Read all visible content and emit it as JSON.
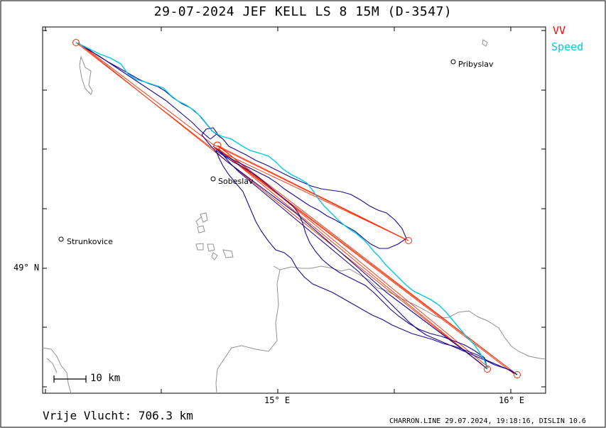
{
  "header": {
    "title": "29-07-2024   JEF KELL   LS 8 15M (D-3547)"
  },
  "legend": {
    "vv_label": "VV",
    "speed_label": "Speed",
    "vv_color": "#ff0000",
    "speed_color": "#00c8e6",
    "track_color": "#1a0a8c"
  },
  "map": {
    "places": [
      {
        "id": "pribyslav",
        "name": "Pribyslav"
      },
      {
        "id": "sobeslav",
        "name": "Sobeslav"
      },
      {
        "id": "strunkovice",
        "name": "Strunkovice"
      }
    ],
    "axis": {
      "lat_label": "49° N",
      "lon_labels": [
        "15° E",
        "16° E"
      ]
    },
    "scale_label": "10 km"
  },
  "footer": {
    "distance": "Vrije Vlucht:  706.3 km",
    "credit": "CHARRON.LINE 29.07.2024, 19:18:16, DISLIN 10.6"
  }
}
